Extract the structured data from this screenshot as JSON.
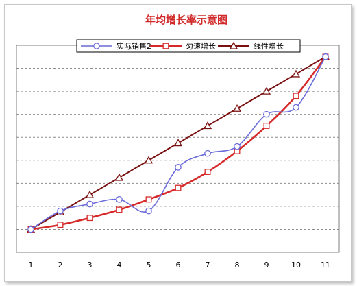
{
  "chart_data": {
    "type": "line",
    "title": "年均增长率示意图",
    "categories": [
      "1",
      "2",
      "3",
      "4",
      "5",
      "6",
      "7",
      "8",
      "9",
      "10",
      "11"
    ],
    "series": [
      {
        "name": "实际销售2",
        "color": "#6b6bd9",
        "marker": "circle",
        "values": [
          0.0,
          0.8,
          1.1,
          1.3,
          0.8,
          2.7,
          3.3,
          3.6,
          5.0,
          5.3,
          7.5
        ]
      },
      {
        "name": "匀速增长",
        "color": "#d62a2a",
        "marker": "square",
        "values": [
          0.0,
          0.2,
          0.5,
          0.85,
          1.3,
          1.8,
          2.5,
          3.4,
          4.5,
          5.8,
          7.5
        ]
      },
      {
        "name": "线性增长",
        "color": "#7a1010",
        "marker": "triangle",
        "values": [
          0.0,
          0.75,
          1.5,
          2.25,
          3.0,
          3.75,
          4.5,
          5.25,
          6.0,
          6.75,
          7.5
        ]
      }
    ],
    "ylim": [
      -1,
      8
    ],
    "grid": true,
    "legend": "top"
  }
}
